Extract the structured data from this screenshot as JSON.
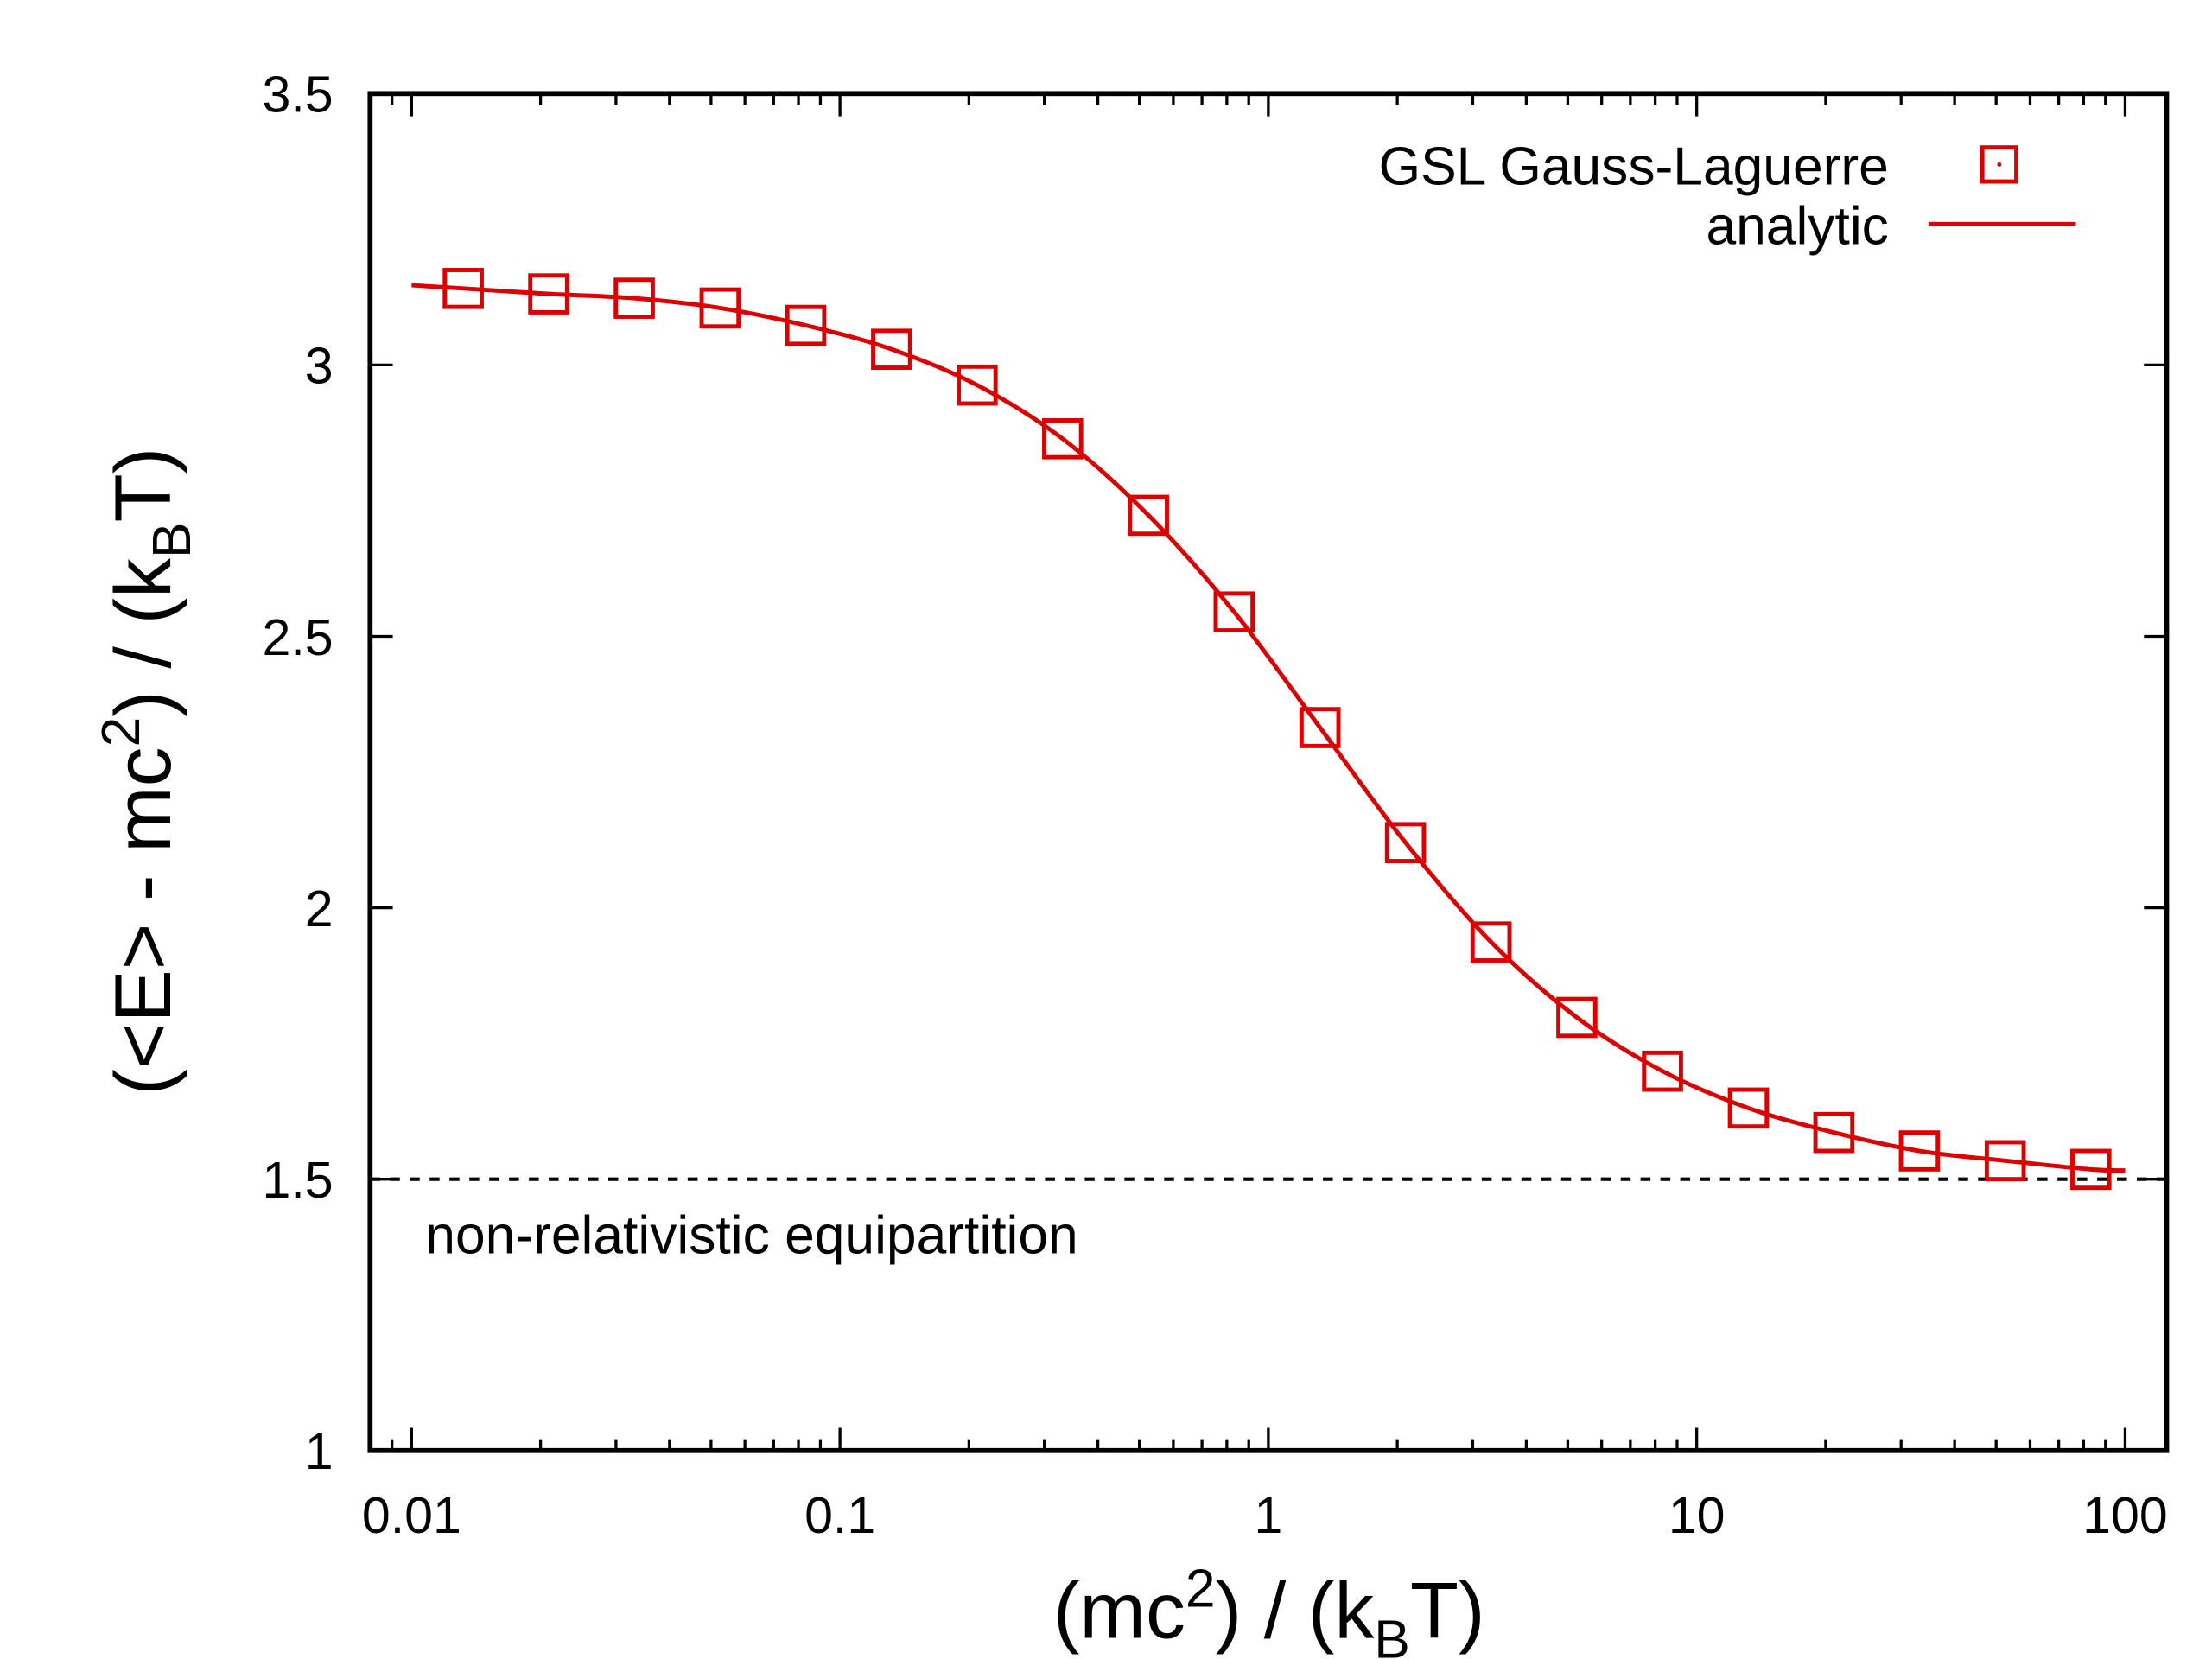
{
  "chart_data": {
    "type": "line",
    "x_scale": "log",
    "xlim": [
      0.008,
      125
    ],
    "ylim": [
      1,
      3.5
    ],
    "grid": false,
    "legend_placement": "top-right",
    "color": "#dd0000",
    "xlabel_parts": [
      "(mc",
      "2",
      ") / (k",
      "B",
      "T)"
    ],
    "ylabel_parts": [
      "(<E> - mc",
      "2",
      ") / (k",
      "B",
      "T)"
    ],
    "x_ticks": [
      0.01,
      0.1,
      1,
      10,
      100
    ],
    "x_tick_labels": [
      "0.01",
      "0.1",
      "1",
      "10",
      "100"
    ],
    "y_ticks": [
      1,
      1.5,
      2,
      2.5,
      3,
      3.5
    ],
    "y_tick_labels": [
      "1",
      "1.5",
      "2",
      "2.5",
      "3",
      "3.5"
    ],
    "series": [
      {
        "name": "GSL Gauss-Laguerre",
        "style": "open-square-markers",
        "x": [
          0.0132,
          0.0209,
          0.0331,
          0.0525,
          0.0832,
          0.132,
          0.209,
          0.331,
          0.525,
          0.832,
          1.32,
          2.09,
          3.31,
          5.25,
          8.32,
          13.2,
          20.9,
          33.1,
          52.5,
          83.2
        ],
        "y": [
          3.141,
          3.131,
          3.123,
          3.105,
          3.073,
          3.029,
          2.963,
          2.864,
          2.723,
          2.545,
          2.332,
          2.12,
          1.937,
          1.798,
          1.699,
          1.631,
          1.586,
          1.552,
          1.534,
          1.518
        ]
      },
      {
        "name": "analytic",
        "style": "solid-line",
        "x": [
          0.01,
          0.0132,
          0.0209,
          0.0331,
          0.0525,
          0.0832,
          0.132,
          0.209,
          0.331,
          0.525,
          0.832,
          1.32,
          2.09,
          3.31,
          5.25,
          8.32,
          13.2,
          20.9,
          33.1,
          52.5,
          83.2,
          100
        ],
        "y": [
          3.147,
          3.141,
          3.131,
          3.123,
          3.105,
          3.073,
          3.029,
          2.963,
          2.864,
          2.723,
          2.545,
          2.332,
          2.12,
          1.937,
          1.798,
          1.699,
          1.631,
          1.586,
          1.552,
          1.534,
          1.518,
          1.516
        ]
      }
    ],
    "reference_line": {
      "y": 1.5,
      "style": "dashed",
      "label": "non-relativistic equipartition"
    }
  }
}
